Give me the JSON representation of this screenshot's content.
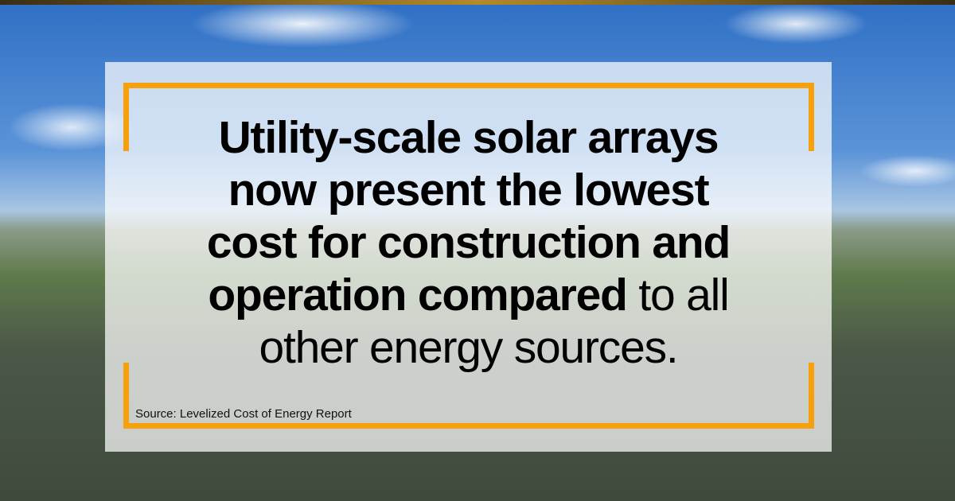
{
  "headline": {
    "lines": [
      [
        {
          "text": "Utility-scale solar arrays",
          "weight": "bold"
        }
      ],
      [
        {
          "text": "now present the lowest",
          "weight": "bold"
        }
      ],
      [
        {
          "text": "cost for construction and",
          "weight": "bold"
        }
      ],
      [
        {
          "text": "operation compared",
          "weight": "bold"
        },
        {
          "text": " to all",
          "weight": "light"
        }
      ],
      [
        {
          "text": "other energy sources.",
          "weight": "light"
        }
      ]
    ]
  },
  "source": "Source: Levelized Cost of Energy Report"
}
